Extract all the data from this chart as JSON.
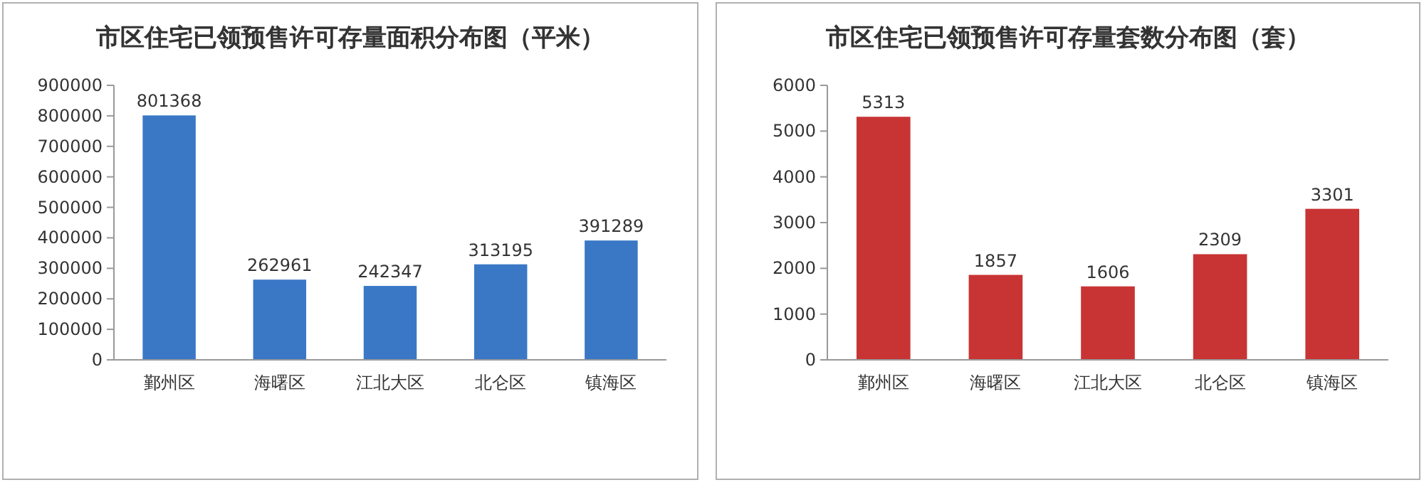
{
  "chart_data": [
    {
      "type": "bar",
      "title": "市区住宅已领预售许可存量面积分布图（平米）",
      "categories": [
        "鄞州区",
        "海曙区",
        "江北大区",
        "北仑区",
        "镇海区"
      ],
      "values": [
        801368,
        262961,
        242347,
        313195,
        391289
      ],
      "color": "#3a78c6",
      "ylim": [
        0,
        900000
      ],
      "yticks": [
        0,
        100000,
        200000,
        300000,
        400000,
        500000,
        600000,
        700000,
        800000,
        900000
      ],
      "data_labels": true
    },
    {
      "type": "bar",
      "title": "市区住宅已领预售许可存量套数分布图（套）",
      "categories": [
        "鄞州区",
        "海曙区",
        "江北大区",
        "北仑区",
        "镇海区"
      ],
      "values": [
        5313,
        1857,
        1606,
        2309,
        3301
      ],
      "color": "#c83434",
      "ylim": [
        0,
        6000
      ],
      "yticks": [
        0,
        1000,
        2000,
        3000,
        4000,
        5000,
        6000
      ],
      "data_labels": true
    }
  ]
}
